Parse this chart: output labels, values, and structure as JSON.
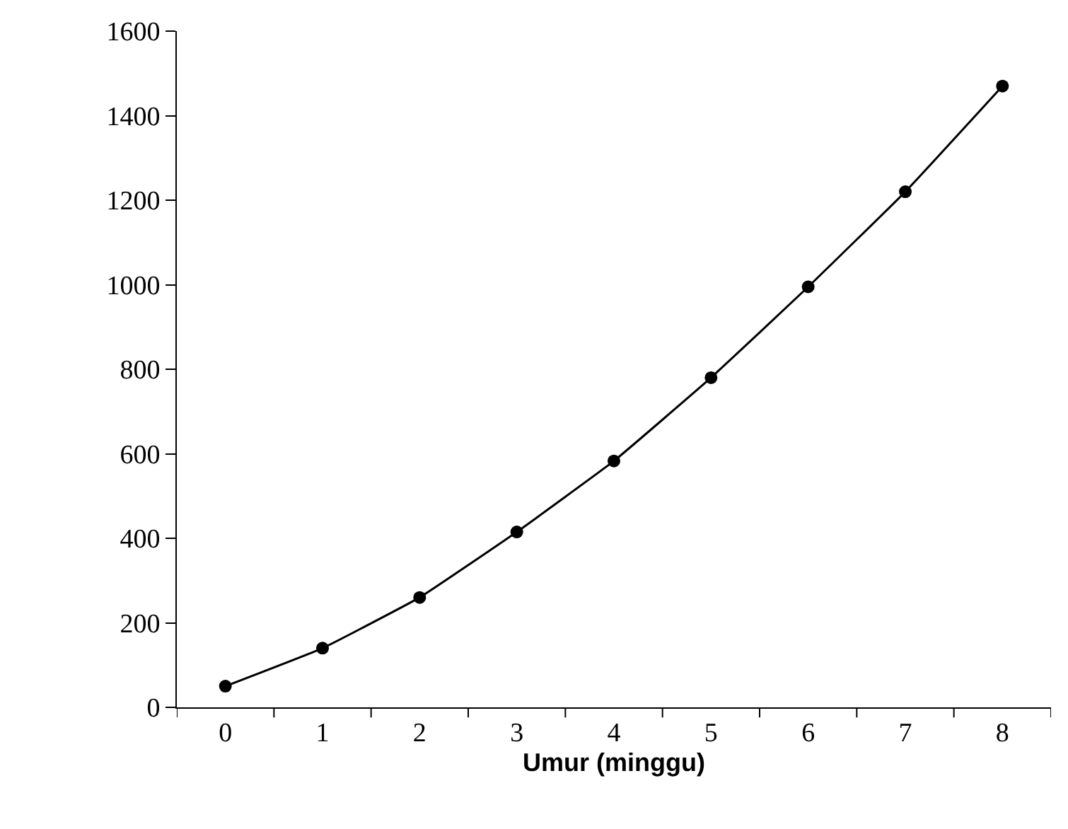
{
  "chart_data": {
    "type": "line",
    "xlabel": "Umur (minggu)",
    "categories": [
      "0",
      "1",
      "2",
      "3",
      "4",
      "5",
      "6",
      "7",
      "8"
    ],
    "series": [
      {
        "color": "#000000",
        "values": [
          50,
          140,
          260,
          415,
          583,
          780,
          995,
          1220,
          1470
        ]
      }
    ],
    "ylim": [
      0,
      1600
    ],
    "yticks": [
      0,
      200,
      400,
      600,
      800,
      1000,
      1200,
      1400,
      1600
    ],
    "grid": false,
    "marker": "circle",
    "line_style": "solid"
  }
}
